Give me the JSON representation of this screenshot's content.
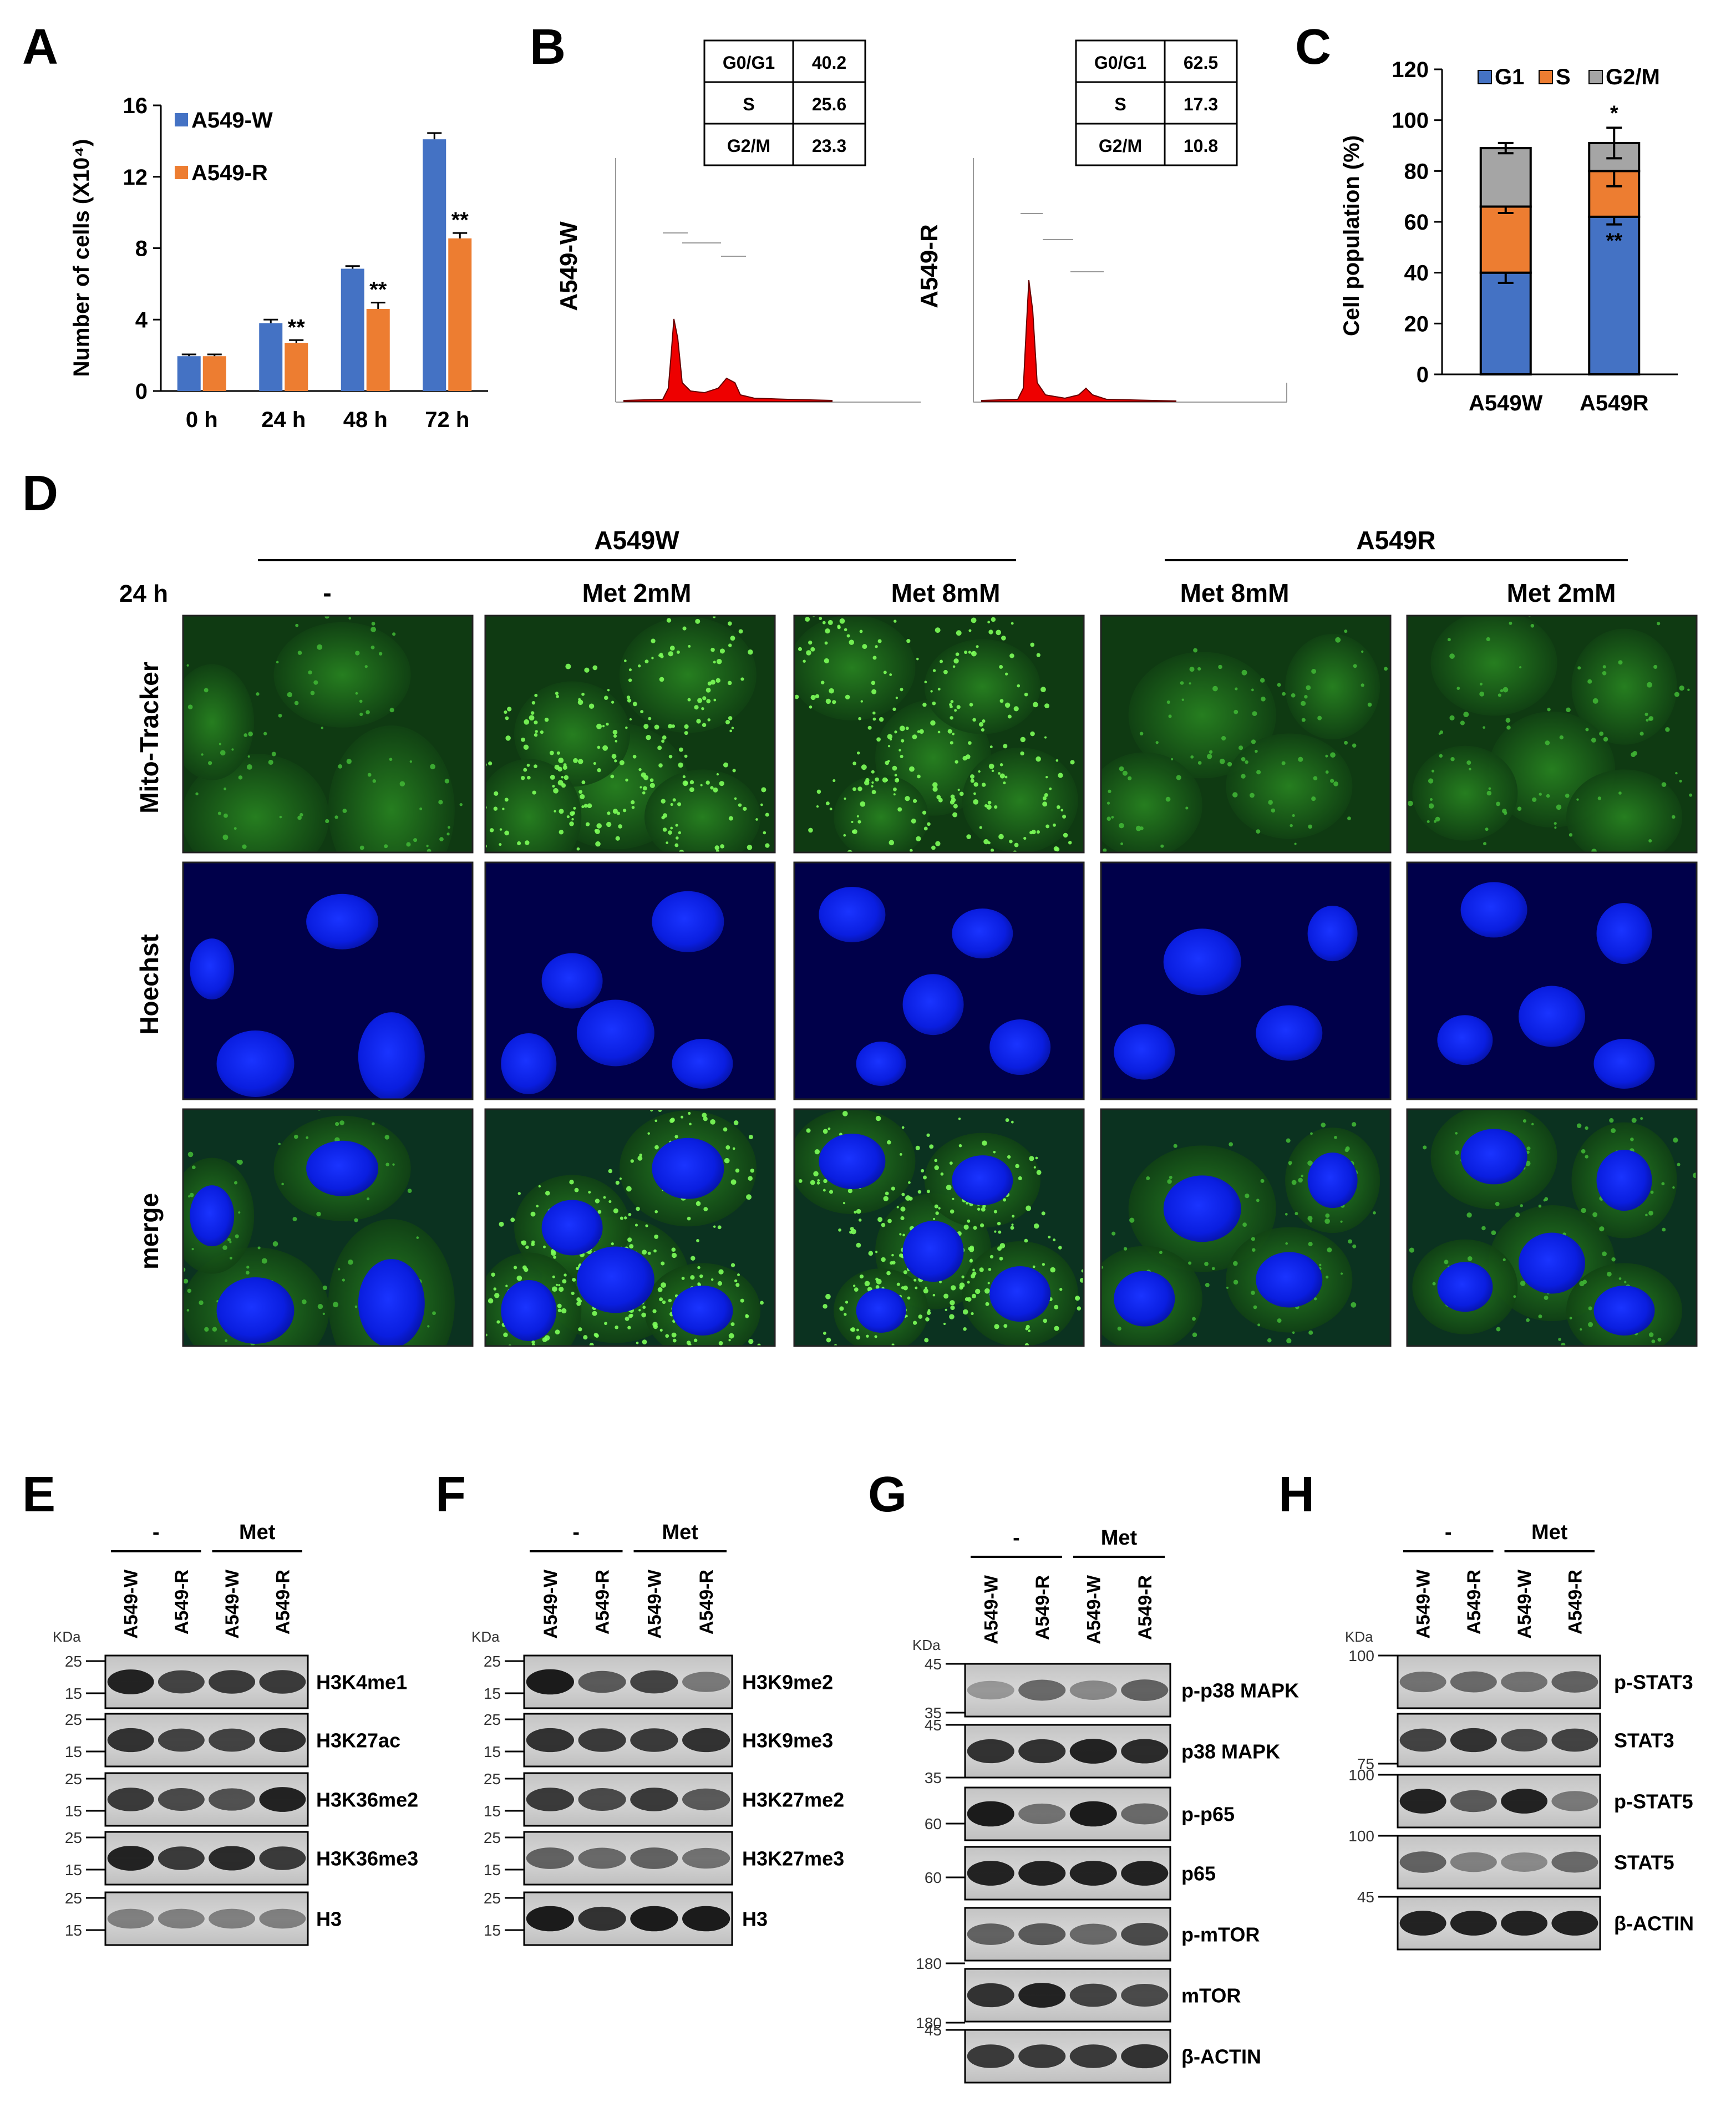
{
  "panels": {
    "A": "A",
    "B": "B",
    "C": "C",
    "D": "D",
    "E": "E",
    "F": "F",
    "G": "G",
    "H": "H"
  },
  "panel_a": {
    "chart_data": {
      "type": "bar",
      "categories": [
        "0 h",
        "24 h",
        "48 h",
        "72 h"
      ],
      "series": [
        {
          "name": "A549-W",
          "values": [
            1.95,
            3.8,
            6.85,
            14.1
          ],
          "errors": [
            0.1,
            0.2,
            0.15,
            0.35
          ],
          "color": "#4472c4"
        },
        {
          "name": "A549-R",
          "values": [
            1.95,
            2.7,
            4.6,
            8.55
          ],
          "errors": [
            0.1,
            0.15,
            0.35,
            0.3
          ],
          "color": "#ed7d31"
        }
      ],
      "significance": [
        "",
        "**",
        "**",
        "**"
      ],
      "ylabel": "Number of cells (X10⁴)",
      "yticks": [
        "0",
        "4",
        "8",
        "12",
        "16"
      ],
      "ylim": [
        0,
        16
      ],
      "legend_position": "top-left"
    }
  },
  "panel_b": {
    "histograms": [
      {
        "label": "A549-W",
        "table": [
          [
            "G0/G1",
            "40.2"
          ],
          [
            "S",
            "25.6"
          ],
          [
            "G2/M",
            "23.3"
          ]
        ]
      },
      {
        "label": "A549-R",
        "table": [
          [
            "G0/G1",
            "62.5"
          ],
          [
            "S",
            "17.3"
          ],
          [
            "G2/M",
            "10.8"
          ]
        ]
      }
    ]
  },
  "panel_c": {
    "chart_data": {
      "type": "bar",
      "stacked": true,
      "categories": [
        "A549W",
        "A549R"
      ],
      "series": [
        {
          "name": "G1",
          "values": [
            40,
            62
          ],
          "color": "#4472c4"
        },
        {
          "name": "S",
          "values": [
            26,
            18
          ],
          "color": "#ed7d31"
        },
        {
          "name": "G2/M",
          "values": [
            23,
            11
          ],
          "color": "#a5a5a5"
        }
      ],
      "significance": [
        "",
        "*",
        "**"
      ],
      "ylabel": "Cell population (%)",
      "yticks": [
        "0",
        "20",
        "40",
        "60",
        "80",
        "100",
        "120"
      ],
      "ylim": [
        0,
        120
      ],
      "legend_position": "top"
    }
  },
  "panel_d": {
    "time": "24 h",
    "group_a": "A549W",
    "group_b": "A549R",
    "columns": [
      "-",
      "Met 2mM",
      "Met 8mM",
      "Met 8mM",
      "Met 2mM"
    ],
    "rows": [
      "Mito-Tracker",
      "Hoechst",
      "merge"
    ]
  },
  "blots": {
    "treat_none": "-",
    "treat_met": "Met",
    "lanes": [
      "A549-W",
      "A549-R",
      "A549-W",
      "A549-R"
    ],
    "kda": "KDa",
    "E": {
      "bands": [
        "H3K4me1",
        "H3K27ac",
        "H3K36me2",
        "H3K36me3",
        "H3"
      ],
      "markers": [
        [
          "25",
          "15"
        ],
        [
          "25",
          "15"
        ],
        [
          "25",
          "15"
        ],
        [
          "25",
          "15"
        ],
        [
          "25",
          "15"
        ]
      ]
    },
    "F": {
      "bands": [
        "H3K9me2",
        "H3K9me3",
        "H3K27me2",
        "H3K27me3",
        "H3"
      ],
      "markers": [
        [
          "25",
          "15"
        ],
        [
          "25",
          "15"
        ],
        [
          "25",
          "15"
        ],
        [
          "25",
          "15"
        ],
        [
          "25",
          "15"
        ]
      ]
    },
    "G": {
      "bands": [
        "p-p38 MAPK",
        "p38 MAPK",
        "p-p65",
        "p65",
        "p-mTOR",
        "mTOR",
        "β-ACTIN"
      ],
      "markers": [
        "45",
        "35",
        "45",
        "35",
        "60",
        "60",
        "180",
        "180",
        "45"
      ]
    },
    "H": {
      "bands": [
        "p-STAT3",
        "STAT3",
        "p-STAT5",
        "STAT5",
        "β-ACTIN"
      ],
      "markers": [
        "100",
        "75",
        "100",
        "100",
        "45"
      ]
    }
  }
}
